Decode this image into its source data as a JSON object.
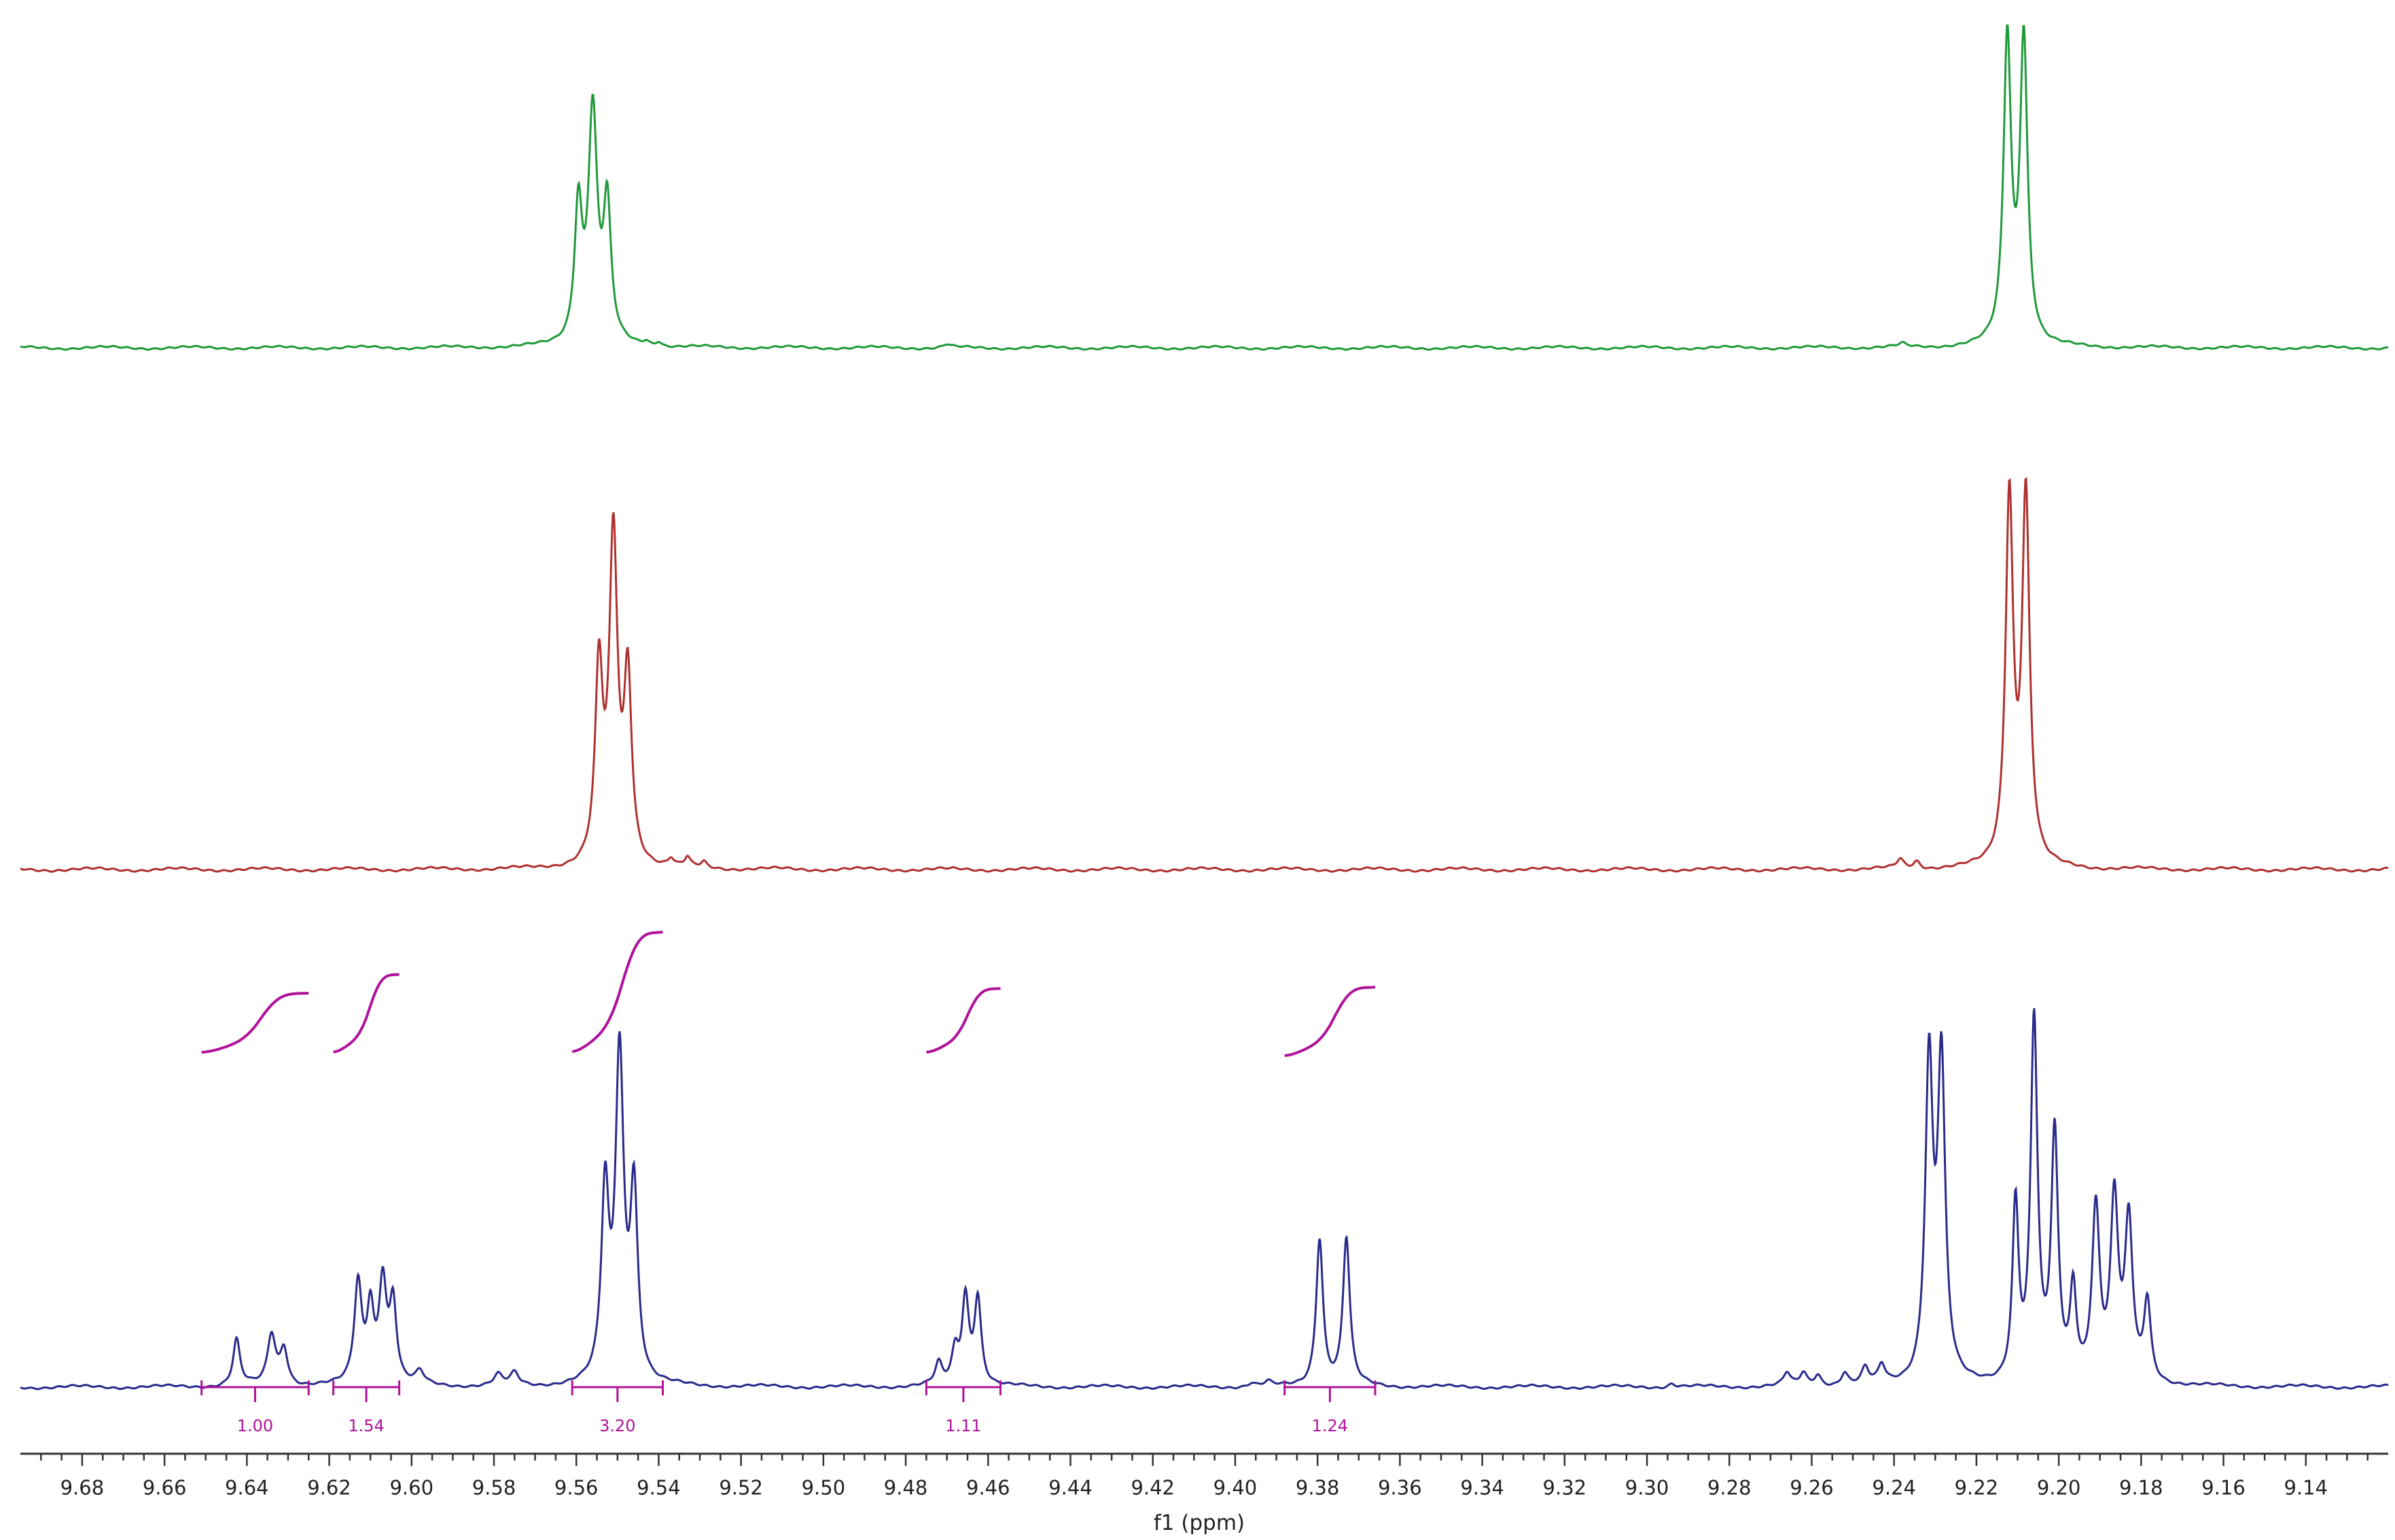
{
  "chart_data": {
    "type": "line",
    "title": "",
    "xlabel": "f1 (ppm)",
    "ylabel": "",
    "xlim": [
      9.695,
      9.12
    ],
    "x_reversed": true,
    "grid": false,
    "ticks": [
      "9.68",
      "9.66",
      "9.64",
      "9.62",
      "9.60",
      "9.58",
      "9.56",
      "9.54",
      "9.52",
      "9.50",
      "9.48",
      "9.46",
      "9.44",
      "9.42",
      "9.40",
      "9.38",
      "9.36",
      "9.34",
      "9.32",
      "9.30",
      "9.28",
      "9.26",
      "9.24",
      "9.22",
      "9.20",
      "9.18",
      "9.16",
      "9.14"
    ],
    "series": [
      {
        "color": "#1f9a3a",
        "stack_position": "top",
        "peaks": [
          {
            "ppm": 9.5595,
            "height": 0.42,
            "width": 0.0011
          },
          {
            "ppm": 9.556,
            "height": 0.72,
            "width": 0.0013
          },
          {
            "ppm": 9.5525,
            "height": 0.42,
            "width": 0.0011
          },
          {
            "ppm": 9.543,
            "height": 0.012,
            "width": 0.0008
          },
          {
            "ppm": 9.54,
            "height": 0.014,
            "width": 0.0008
          },
          {
            "ppm": 9.47,
            "height": 0.01,
            "width": 0.001
          },
          {
            "ppm": 9.2125,
            "height": 0.95,
            "width": 0.0011
          },
          {
            "ppm": 9.2085,
            "height": 0.95,
            "width": 0.0011
          },
          {
            "ppm": 9.238,
            "height": 0.01,
            "width": 0.001
          }
        ]
      },
      {
        "color": "#b03030",
        "stack_position": "middle",
        "peaks": [
          {
            "ppm": 9.5545,
            "height": 0.52,
            "width": 0.0011
          },
          {
            "ppm": 9.551,
            "height": 0.88,
            "width": 0.0012
          },
          {
            "ppm": 9.5475,
            "height": 0.5,
            "width": 0.0011
          },
          {
            "ppm": 9.537,
            "height": 0.02,
            "width": 0.0008
          },
          {
            "ppm": 9.533,
            "height": 0.025,
            "width": 0.0008
          },
          {
            "ppm": 9.529,
            "height": 0.015,
            "width": 0.0008
          },
          {
            "ppm": 9.2385,
            "height": 0.025,
            "width": 0.001
          },
          {
            "ppm": 9.2345,
            "height": 0.02,
            "width": 0.001
          },
          {
            "ppm": 9.212,
            "height": 1.0,
            "width": 0.0011
          },
          {
            "ppm": 9.208,
            "height": 1.0,
            "width": 0.0011
          }
        ]
      },
      {
        "color": "#2a2a8c",
        "stack_position": "bottom",
        "peaks": [
          {
            "ppm": 9.6425,
            "height": 0.13,
            "width": 0.001
          },
          {
            "ppm": 9.634,
            "height": 0.14,
            "width": 0.0012
          },
          {
            "ppm": 9.631,
            "height": 0.1,
            "width": 0.0011
          },
          {
            "ppm": 9.613,
            "height": 0.28,
            "width": 0.0011
          },
          {
            "ppm": 9.61,
            "height": 0.2,
            "width": 0.001
          },
          {
            "ppm": 9.607,
            "height": 0.28,
            "width": 0.0011
          },
          {
            "ppm": 9.6045,
            "height": 0.22,
            "width": 0.001
          },
          {
            "ppm": 9.598,
            "height": 0.035,
            "width": 0.0012
          },
          {
            "ppm": 9.579,
            "height": 0.03,
            "width": 0.0012
          },
          {
            "ppm": 9.575,
            "height": 0.035,
            "width": 0.0012
          },
          {
            "ppm": 9.553,
            "height": 0.52,
            "width": 0.0011
          },
          {
            "ppm": 9.5495,
            "height": 0.9,
            "width": 0.0012
          },
          {
            "ppm": 9.546,
            "height": 0.52,
            "width": 0.0011
          },
          {
            "ppm": 9.472,
            "height": 0.06,
            "width": 0.001
          },
          {
            "ppm": 9.468,
            "height": 0.09,
            "width": 0.001
          },
          {
            "ppm": 9.4655,
            "height": 0.24,
            "width": 0.001
          },
          {
            "ppm": 9.4625,
            "height": 0.24,
            "width": 0.001
          },
          {
            "ppm": 9.396,
            "height": 0.01,
            "width": 0.001
          },
          {
            "ppm": 9.392,
            "height": 0.012,
            "width": 0.001
          },
          {
            "ppm": 9.3795,
            "height": 0.41,
            "width": 0.001
          },
          {
            "ppm": 9.373,
            "height": 0.41,
            "width": 0.001
          },
          {
            "ppm": 9.294,
            "height": 0.01,
            "width": 0.001
          },
          {
            "ppm": 9.266,
            "height": 0.035,
            "width": 0.001
          },
          {
            "ppm": 9.262,
            "height": 0.035,
            "width": 0.001
          },
          {
            "ppm": 9.2585,
            "height": 0.03,
            "width": 0.001
          },
          {
            "ppm": 9.252,
            "height": 0.035,
            "width": 0.001
          },
          {
            "ppm": 9.247,
            "height": 0.045,
            "width": 0.001
          },
          {
            "ppm": 9.243,
            "height": 0.05,
            "width": 0.001
          },
          {
            "ppm": 9.2315,
            "height": 0.88,
            "width": 0.0011
          },
          {
            "ppm": 9.2285,
            "height": 0.88,
            "width": 0.0011
          },
          {
            "ppm": 9.2105,
            "height": 0.49,
            "width": 0.0009
          },
          {
            "ppm": 9.206,
            "height": 1.0,
            "width": 0.001
          },
          {
            "ppm": 9.201,
            "height": 0.68,
            "width": 0.001
          },
          {
            "ppm": 9.1965,
            "height": 0.25,
            "width": 0.0009
          },
          {
            "ppm": 9.191,
            "height": 0.48,
            "width": 0.0011
          },
          {
            "ppm": 9.1865,
            "height": 0.5,
            "width": 0.0011
          },
          {
            "ppm": 9.183,
            "height": 0.44,
            "width": 0.0011
          },
          {
            "ppm": 9.1785,
            "height": 0.22,
            "width": 0.001
          }
        ]
      }
    ],
    "integrals": [
      {
        "label": "1.00",
        "from": 9.651,
        "to": 9.625,
        "center": 9.638,
        "rise": 0.35
      },
      {
        "label": "1.54",
        "from": 9.619,
        "to": 9.603,
        "center": 9.611,
        "rise": 0.55
      },
      {
        "label": "3.20",
        "from": 9.561,
        "to": 9.539,
        "center": 9.55,
        "rise": 1.0
      },
      {
        "label": "1.11",
        "from": 9.475,
        "to": 9.457,
        "center": 9.466,
        "rise": 0.4
      },
      {
        "label": "1.24",
        "from": 9.388,
        "to": 9.366,
        "center": 9.377,
        "rise": 0.45
      }
    ],
    "integral_color": "#b0129a"
  }
}
